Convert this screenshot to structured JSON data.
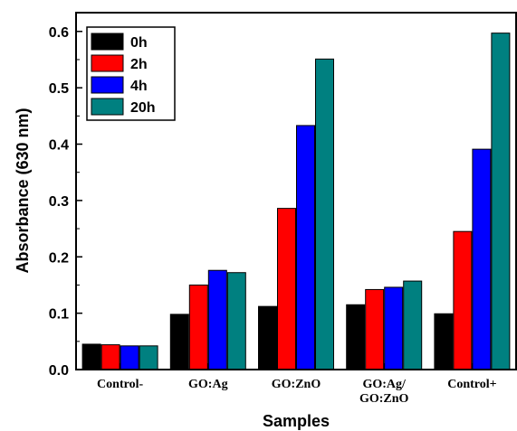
{
  "chart_data": {
    "type": "bar",
    "title": "",
    "xlabel": "Samples",
    "ylabel": "Absorbance (630 nm)",
    "ylim": [
      0.0,
      0.6333
    ],
    "yticks": [
      "0.0",
      "0.1",
      "0.2",
      "0.3",
      "0.4",
      "0.5",
      "0.6"
    ],
    "categories": [
      [
        "Control-"
      ],
      [
        "GO:Ag"
      ],
      [
        "GO:ZnO"
      ],
      [
        "GO:Ag/",
        "GO:ZnO"
      ],
      [
        "Control+"
      ]
    ],
    "series": [
      {
        "name": "0h",
        "color": "#000000",
        "values": [
          0.045,
          0.098,
          0.112,
          0.115,
          0.099
        ]
      },
      {
        "name": "2h",
        "color": "#ff0000",
        "values": [
          0.044,
          0.15,
          0.286,
          0.142,
          0.245
        ]
      },
      {
        "name": "4h",
        "color": "#0000ff",
        "values": [
          0.042,
          0.176,
          0.433,
          0.146,
          0.391
        ]
      },
      {
        "name": "20h",
        "color": "#008080",
        "values": [
          0.042,
          0.172,
          0.551,
          0.157,
          0.597
        ]
      }
    ],
    "legend_position": "top-left",
    "grid": false
  }
}
